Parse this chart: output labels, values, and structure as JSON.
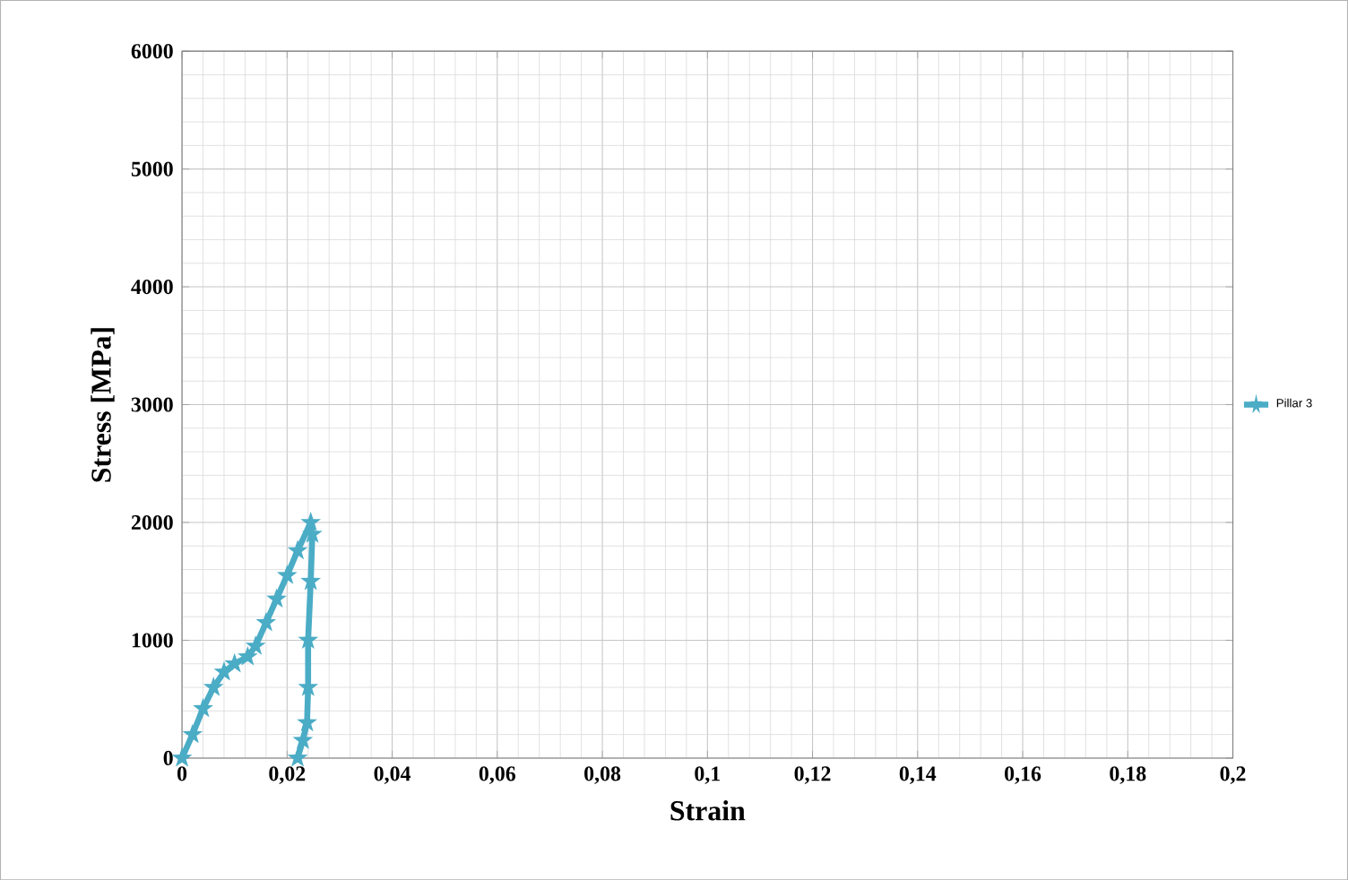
{
  "chart_data": {
    "type": "line",
    "xlabel": "Strain",
    "ylabel": "Stress [MPa]",
    "x": [
      0,
      0.002,
      0.004,
      0.006,
      0.008,
      0.01,
      0.0125,
      0.014,
      0.016,
      0.018,
      0.02,
      0.022,
      0.0245,
      0.0248,
      0.0245,
      0.024,
      0.024,
      0.0238,
      0.023,
      0.022
    ],
    "series": [
      {
        "name": "Pillar 3",
        "color": "#4bacc6",
        "values": [
          0,
          200,
          420,
          600,
          730,
          800,
          860,
          950,
          1150,
          1350,
          1550,
          1760,
          2000,
          1900,
          1500,
          1000,
          600,
          300,
          150,
          0
        ]
      }
    ],
    "xlim": [
      0,
      0.2
    ],
    "ylim": [
      0,
      6000
    ],
    "xticks": [
      0,
      {
        "value": 0.02,
        "label": "0,02"
      },
      {
        "value": 0.04,
        "label": "0,04"
      },
      {
        "value": 0.06,
        "label": "0,06"
      },
      {
        "value": 0.08,
        "label": "0,08"
      },
      {
        "value": 0.1,
        "label": "0,1"
      },
      {
        "value": 0.12,
        "label": "0,12"
      },
      {
        "value": 0.14,
        "label": "0,14"
      },
      {
        "value": 0.16,
        "label": "0,16"
      },
      {
        "value": 0.18,
        "label": "0,18"
      },
      {
        "value": 0.2,
        "label": "0,2"
      }
    ],
    "yticks": [
      0,
      1000,
      2000,
      3000,
      4000,
      5000,
      6000
    ],
    "grid": true,
    "legend": "right",
    "marker": "star",
    "line_style": "solid"
  }
}
